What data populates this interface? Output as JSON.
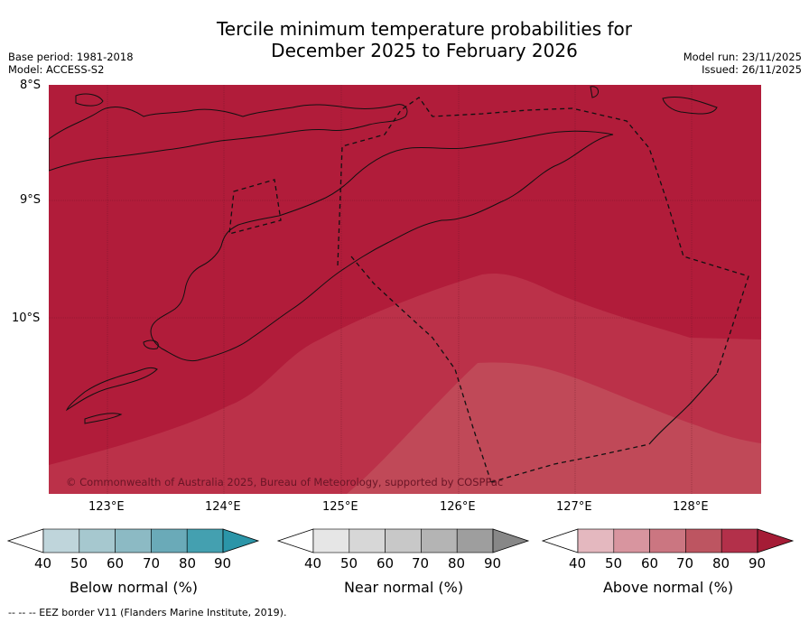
{
  "title_line1": "Tercile minimum temperature probabilities for",
  "title_line2": "December 2025 to February 2026",
  "base_period": "Base period: 1981-2018",
  "model": "Model: ACCESS-S2",
  "model_run": "Model run: 23/11/2025",
  "issued": "Issued: 26/11/2025",
  "lat_labels": [
    "8°S",
    "9°S",
    "10°S"
  ],
  "lon_labels": [
    "123°E",
    "124°E",
    "125°E",
    "126°E",
    "127°E",
    "128°E"
  ],
  "copyright": "© Commonwealth of Australia 2025, Bureau of Meteorology, supported by COSPPac",
  "colorbars": [
    {
      "label": "Below normal (%)",
      "ticks": [
        "40",
        "50",
        "60",
        "70",
        "80",
        "90"
      ],
      "colors": [
        "#ffffff",
        "#bfd5db",
        "#a6c8cf",
        "#8cbac4",
        "#6aaab8",
        "#44a0b0",
        "#2b95a8"
      ]
    },
    {
      "label": "Near normal (%)",
      "ticks": [
        "40",
        "50",
        "60",
        "70",
        "80",
        "90"
      ],
      "colors": [
        "#ffffff",
        "#e6e6e6",
        "#d7d7d7",
        "#c8c8c8",
        "#b4b4b4",
        "#9e9e9e",
        "#878787"
      ]
    },
    {
      "label": "Above normal (%)",
      "ticks": [
        "40",
        "50",
        "60",
        "70",
        "80",
        "90"
      ],
      "colors": [
        "#ffffff",
        "#e4b8bf",
        "#d8959f",
        "#cb7681",
        "#bd5561",
        "#b3304a",
        "#a51c36"
      ]
    }
  ],
  "footer": "--  --  -- EEZ border V11 (Flanders Marine Institute, 2019)."
}
